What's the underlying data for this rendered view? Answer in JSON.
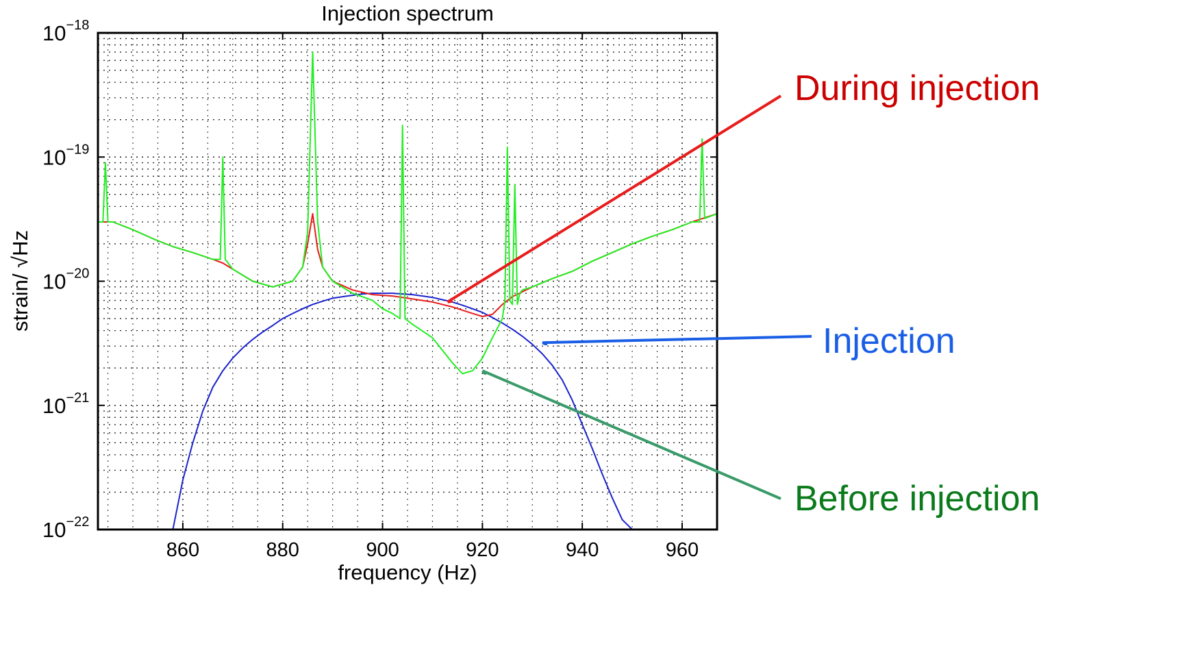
{
  "chart_data": {
    "type": "line",
    "title": "Injection spectrum",
    "xlabel": "frequency (Hz)",
    "ylabel": "strain/ √Hz",
    "xlim": [
      843,
      967
    ],
    "ylim": [
      1e-22,
      1e-18
    ],
    "ylog": true,
    "grid": true,
    "x_ticks": [
      860,
      880,
      900,
      920,
      940,
      960
    ],
    "x_tick_labels": [
      "860",
      "880",
      "900",
      "920",
      "940",
      "960"
    ],
    "y_ticks": [
      {
        "value": 1e-22,
        "base": "10",
        "exp": "−22"
      },
      {
        "value": 1e-21,
        "base": "10",
        "exp": "−21"
      },
      {
        "value": 1e-20,
        "base": "10",
        "exp": "−20"
      },
      {
        "value": 1e-19,
        "base": "10",
        "exp": "−19"
      },
      {
        "value": 1e-18,
        "base": "10",
        "exp": "−18"
      }
    ],
    "series": [
      {
        "name": "Injection",
        "color": "#1a22cc",
        "x": [
          858,
          860,
          862,
          864,
          866,
          868,
          870,
          872,
          874,
          876,
          878,
          880,
          882,
          884,
          886,
          888,
          890,
          892,
          894,
          896,
          898,
          900,
          902,
          904,
          906,
          908,
          910,
          912,
          914,
          916,
          918,
          920,
          922,
          924,
          926,
          928,
          930,
          932,
          934,
          936,
          938,
          940,
          942,
          944,
          946,
          948,
          950
        ],
        "y": [
          1e-22,
          2.5e-22,
          5e-22,
          9e-22,
          1.4e-21,
          1.9e-21,
          2.4e-21,
          2.9e-21,
          3.4e-21,
          3.9e-21,
          4.4e-21,
          5e-21,
          5.5e-21,
          6e-21,
          6.5e-21,
          6.9e-21,
          7.3e-21,
          7.5e-21,
          7.7e-21,
          7.9e-21,
          8e-21,
          8e-21,
          8e-21,
          7.9e-21,
          7.8e-21,
          7.6e-21,
          7.4e-21,
          7.1e-21,
          6.8e-21,
          6.4e-21,
          6e-21,
          5.6e-21,
          5.1e-21,
          4.6e-21,
          4.1e-21,
          3.6e-21,
          3.1e-21,
          2.6e-21,
          2.1e-21,
          1.6e-21,
          1.1e-21,
          7e-22,
          4.5e-22,
          2.8e-22,
          1.8e-22,
          1.2e-22,
          1e-22
        ]
      },
      {
        "name": "During injection",
        "color": "#e81c1c",
        "x": [
          843,
          846,
          850,
          854,
          858,
          862,
          866,
          868,
          870,
          874,
          878,
          882,
          884,
          885,
          886,
          887,
          888,
          890,
          894,
          898,
          902,
          906,
          910,
          914,
          918,
          920,
          922,
          924,
          926,
          930,
          934,
          938,
          942,
          946,
          950,
          954,
          958,
          962,
          967
        ],
        "y": [
          3e-20,
          3e-20,
          2.6e-20,
          2.2e-20,
          1.9e-20,
          1.7e-20,
          1.5e-20,
          1.4e-20,
          1.25e-20,
          1e-20,
          9e-21,
          1e-20,
          1.3e-20,
          2e-20,
          3.5e-20,
          1.8e-20,
          1.3e-20,
          1e-20,
          8.5e-21,
          7.8e-21,
          7.6e-21,
          7.2e-21,
          6.8e-21,
          6.2e-21,
          5.5e-21,
          5.2e-21,
          5.4e-21,
          6.5e-21,
          7.5e-21,
          9e-21,
          1.05e-20,
          1.2e-20,
          1.45e-20,
          1.7e-20,
          2e-20,
          2.3e-20,
          2.6e-20,
          3e-20,
          3.5e-20
        ]
      },
      {
        "name": "Before injection",
        "color": "#22ee22",
        "x": [
          843,
          844,
          844.5,
          845,
          846,
          850,
          854,
          858,
          862,
          866,
          867.5,
          868,
          868.5,
          870,
          874,
          878,
          882,
          884,
          885,
          886,
          887,
          888,
          890,
          894,
          898,
          900,
          902,
          903.5,
          904,
          904.5,
          906,
          910,
          914,
          916,
          918,
          920,
          922,
          924,
          924.5,
          925,
          925.5,
          926,
          926.5,
          927,
          927.5,
          928,
          930,
          934,
          938,
          942,
          946,
          950,
          954,
          958,
          962,
          963.5,
          964,
          964.5,
          967
        ],
        "y": [
          3e-20,
          3e-20,
          9e-20,
          3e-20,
          3e-20,
          2.6e-20,
          2.2e-20,
          1.9e-20,
          1.7e-20,
          1.5e-20,
          1.5e-20,
          1e-19,
          1.5e-20,
          1.25e-20,
          1e-20,
          9e-21,
          1e-20,
          1.3e-20,
          2.5e-20,
          7e-19,
          3e-20,
          1.3e-20,
          1e-20,
          8e-21,
          7e-21,
          6e-21,
          5.5e-21,
          5e-21,
          1.8e-19,
          5e-21,
          4.5e-21,
          3.5e-21,
          2.2e-21,
          1.8e-21,
          1.9e-21,
          2.4e-21,
          3.5e-21,
          5e-21,
          7e-21,
          1.2e-19,
          7e-21,
          6.5e-21,
          6e-20,
          6.5e-21,
          8e-21,
          8.5e-21,
          9e-21,
          1.05e-20,
          1.2e-20,
          1.45e-20,
          1.7e-20,
          2e-20,
          2.3e-20,
          2.6e-20,
          3e-20,
          3e-20,
          1.4e-19,
          3.2e-20,
          3.5e-20
        ]
      }
    ],
    "annotations": [
      {
        "text": "During injection",
        "color": "#cc0000",
        "arrow_color": "#e81c1c",
        "target_x": 913,
        "target_y": 6.8e-21
      },
      {
        "text": "Injection",
        "color": "#1a5ee6",
        "arrow_color": "#1a5ee6",
        "target_x": 932,
        "target_y": 3.2e-21
      },
      {
        "text": "Before injection",
        "color": "#0a7a1a",
        "arrow_color": "#3a9a6a",
        "target_x": 920,
        "target_y": 1.9e-21
      }
    ]
  }
}
